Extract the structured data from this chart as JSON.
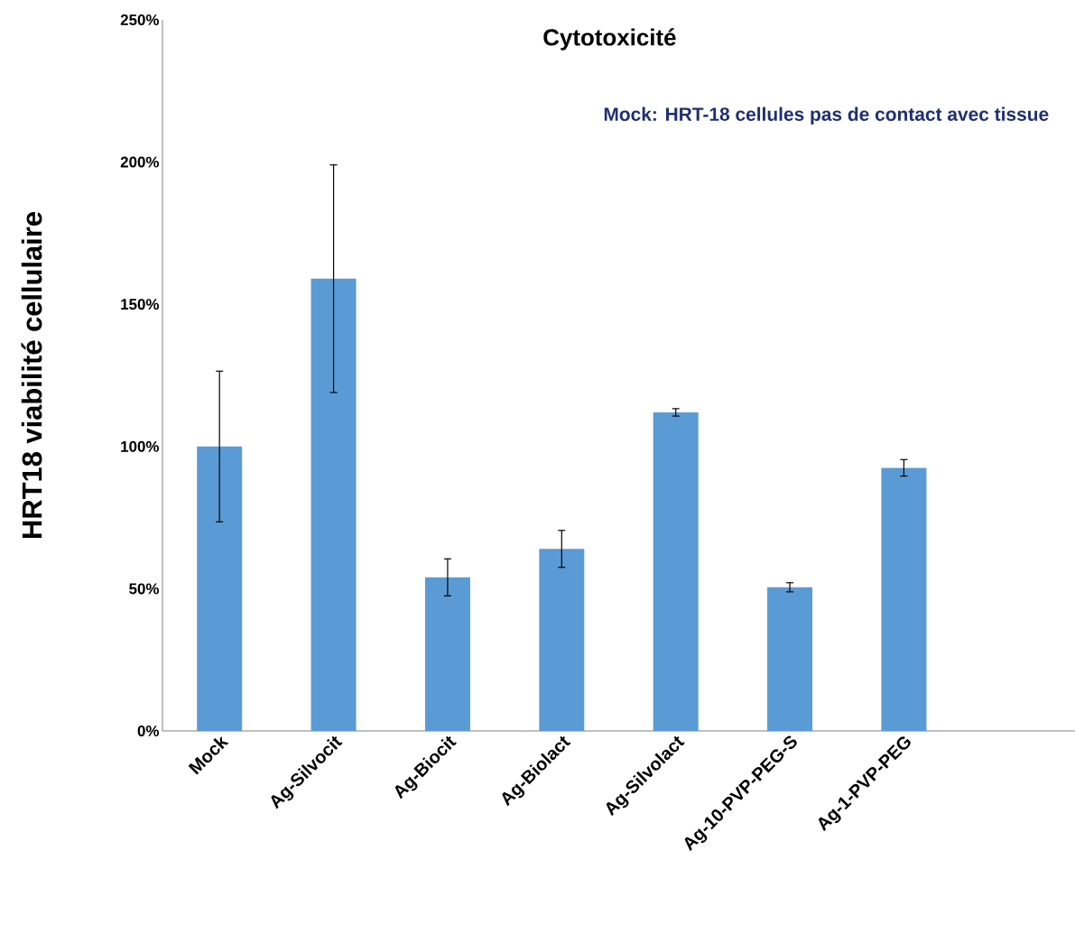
{
  "chart_data": {
    "type": "bar",
    "title": "Cytotoxicité",
    "ylabel": "HRT18 viabilité cellulaire",
    "annotations": [
      "Mock: HRT-18 cellules pas de contact avec tissue"
    ],
    "categories": [
      "Mock",
      "Ag-Silvocit",
      "Ag-Biocit",
      "Ag-Biolact",
      "Ag-Silvolact",
      "Ag-10-PVP-PEG-S",
      "Ag-1-PVP-PEG"
    ],
    "values": [
      100,
      159,
      54,
      64,
      112,
      50.5,
      92.5
    ],
    "errors": [
      26.5,
      40,
      6.5,
      6.5,
      1.3,
      1.6,
      2.9
    ],
    "color": "#5b9bd5",
    "ylim": [
      0,
      250
    ],
    "yticks": [
      {
        "value": 0,
        "label": "0%"
      },
      {
        "value": 50,
        "label": "50%"
      },
      {
        "value": 100,
        "label": "100%"
      },
      {
        "value": 150,
        "label": "150%"
      },
      {
        "value": 200,
        "label": "200%"
      },
      {
        "value": 250,
        "label": "250%"
      }
    ],
    "grid": false
  }
}
